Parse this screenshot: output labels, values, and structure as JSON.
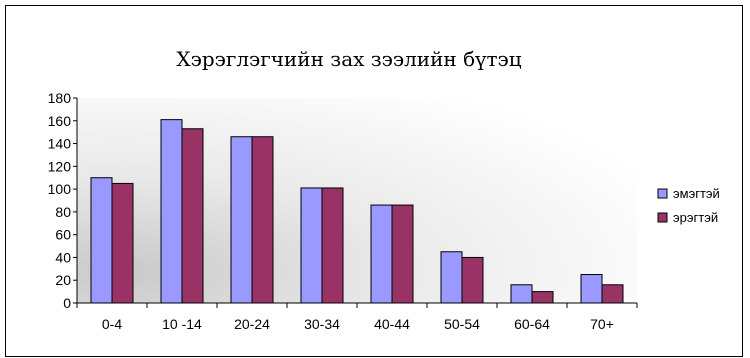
{
  "chart_data": {
    "type": "bar",
    "title": "Хэрэглэгчийн зах зээлийн бүтэц",
    "xlabel": "",
    "ylabel": "",
    "categories": [
      "0-4",
      "10 -14",
      "20-24",
      "30-34",
      "40-44",
      "50-54",
      "60-64",
      "70+"
    ],
    "series": [
      {
        "name": "эмэгтэй",
        "color": "#9999ff",
        "values": [
          110,
          161,
          146,
          101,
          86,
          45,
          16,
          25
        ]
      },
      {
        "name": "эрэгтэй",
        "color": "#993366",
        "values": [
          105,
          153,
          146,
          101,
          86,
          40,
          10,
          16
        ]
      }
    ],
    "ylim": [
      0,
      180
    ],
    "yticks": [
      0,
      20,
      40,
      60,
      80,
      100,
      120,
      140,
      160,
      180
    ],
    "grid": false,
    "legend_position": "right"
  }
}
